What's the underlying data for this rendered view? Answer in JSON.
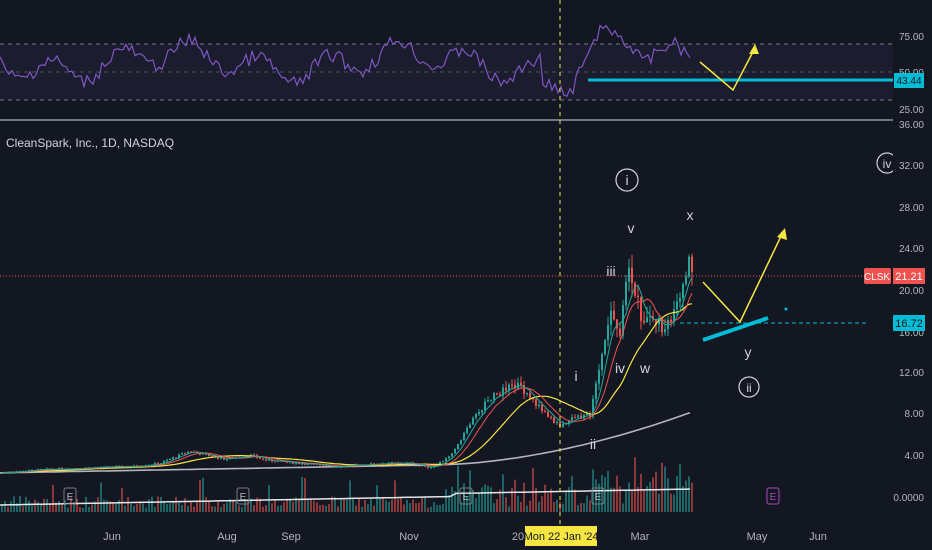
{
  "chart_data": {
    "type": "candlestick",
    "header": {
      "symbol_title": "CleanSpark, Inc., 1D, NASDAQ"
    },
    "colors": {
      "background": "#131722",
      "up": "#26a69a",
      "down": "#ef5350",
      "rsi_line": "#7e57c2",
      "ma_yellow": "#f5e642",
      "ma_gray": "#b2b5be",
      "ema_red": "#ef5350",
      "ema_teal": "#26a69a",
      "drawing_yellow": "#f5e642",
      "drawing_cyan": "#00bcd4",
      "grid": "#2a2e39"
    },
    "price_axis": {
      "scale": "log",
      "ticks": [
        "0.0000",
        "4.00",
        "8.00",
        "12.00",
        "16.00",
        "20.00",
        "24.00",
        "28.00",
        "32.00",
        "36.00"
      ],
      "current_price_label": "21.21",
      "current_symbol_tag": "CLSK",
      "level_label": "16.72"
    },
    "rsi_axis": {
      "ticks": [
        "25.00",
        "50.00",
        "75.00"
      ],
      "current_label": "43.44",
      "band_upper": 70,
      "band_lower": 30
    },
    "time_axis": {
      "ticks": [
        "Jun",
        "Aug",
        "Sep",
        "Nov",
        "20",
        "Mar",
        "May",
        "Jun"
      ],
      "crosshair_date_label": "Mon 22 Jan '24"
    },
    "wave_labels": [
      {
        "text": "i",
        "circled": true
      },
      {
        "text": "iv",
        "circled": true
      },
      {
        "text": "v",
        "circled": false
      },
      {
        "text": "x",
        "circled": false
      },
      {
        "text": "iii",
        "circled": false
      },
      {
        "text": "iv",
        "circled": false
      },
      {
        "text": "w",
        "circled": false
      },
      {
        "text": "i",
        "circled": false
      },
      {
        "text": "ii",
        "circled": false
      },
      {
        "text": "y",
        "circled": false
      },
      {
        "text": "ii",
        "circled": true
      }
    ],
    "earnings_marker": "E",
    "price_series_approx": [
      {
        "date": "2023-05",
        "close": 2.2
      },
      {
        "date": "2023-06",
        "close": 2.9
      },
      {
        "date": "2023-07",
        "close": 4.3
      },
      {
        "date": "2023-08",
        "close": 3.5
      },
      {
        "date": "2023-09",
        "close": 3.2
      },
      {
        "date": "2023-10",
        "close": 2.9
      },
      {
        "date": "2023-11",
        "close": 3.6
      },
      {
        "date": "2023-12",
        "close": 10.8
      },
      {
        "date": "2024-01-22",
        "close": 7.0
      },
      {
        "date": "2024-02",
        "close": 17.0
      },
      {
        "date": "2024-03",
        "close": 21.21
      }
    ]
  }
}
